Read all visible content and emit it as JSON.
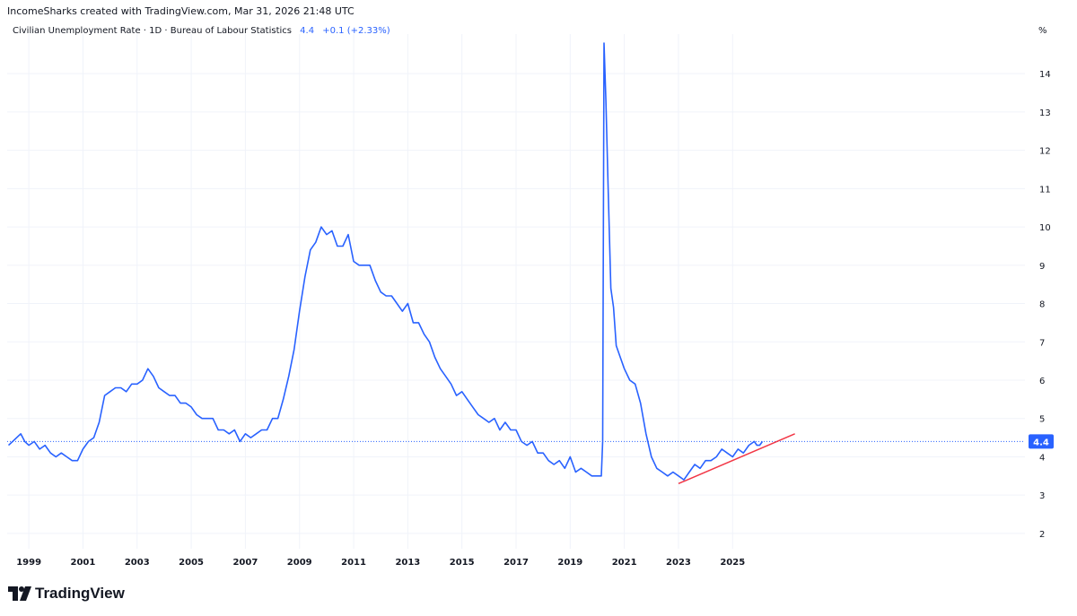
{
  "header": {
    "attribution": "IncomeSharks created with TradingView.com, Mar 31, 2026 21:48 UTC"
  },
  "legend": {
    "symbol": "Civilian Unemployment Rate · 1D · Bureau of Labour Statistics",
    "last_value": "4.4",
    "change": "+0.1 (+2.33%)"
  },
  "axis": {
    "unit": "%",
    "last_price_label": "4.4"
  },
  "brand": {
    "name": "TradingView",
    "logo_icon": "tradingview-logo-icon"
  },
  "colors": {
    "series": "#2962ff",
    "trendline": "#f23645",
    "last_price_bg": "#2962ff",
    "grid": "#f0f3fa"
  },
  "chart_data": {
    "type": "line",
    "title": "Civilian Unemployment Rate",
    "xlabel": "",
    "ylabel": "",
    "xlim": [
      1998.2,
      2035.8
    ],
    "ylim": [
      1.6,
      14.8
    ],
    "x_ticks": [
      1999,
      2001,
      2003,
      2005,
      2007,
      2009,
      2011,
      2013,
      2015,
      2017,
      2019,
      2021,
      2023,
      2025
    ],
    "y_ticks": [
      2,
      3,
      4,
      5,
      6,
      7,
      8,
      9,
      10,
      11,
      12,
      13,
      14
    ],
    "last_value": 4.4,
    "grid": true,
    "series": [
      {
        "name": "",
        "points": [
          [
            1998.25,
            4.3
          ],
          [
            1998.4,
            4.4
          ],
          [
            1998.55,
            4.5
          ],
          [
            1998.7,
            4.6
          ],
          [
            1998.85,
            4.4
          ],
          [
            1999.0,
            4.3
          ],
          [
            1999.2,
            4.4
          ],
          [
            1999.4,
            4.2
          ],
          [
            1999.6,
            4.3
          ],
          [
            1999.8,
            4.1
          ],
          [
            2000.0,
            4.0
          ],
          [
            2000.2,
            4.1
          ],
          [
            2000.4,
            4.0
          ],
          [
            2000.6,
            3.9
          ],
          [
            2000.8,
            3.9
          ],
          [
            2001.0,
            4.2
          ],
          [
            2001.2,
            4.4
          ],
          [
            2001.4,
            4.5
          ],
          [
            2001.6,
            4.9
          ],
          [
            2001.8,
            5.6
          ],
          [
            2002.0,
            5.7
          ],
          [
            2002.2,
            5.8
          ],
          [
            2002.4,
            5.8
          ],
          [
            2002.6,
            5.7
          ],
          [
            2002.8,
            5.9
          ],
          [
            2003.0,
            5.9
          ],
          [
            2003.2,
            6.0
          ],
          [
            2003.4,
            6.3
          ],
          [
            2003.6,
            6.1
          ],
          [
            2003.8,
            5.8
          ],
          [
            2004.0,
            5.7
          ],
          [
            2004.2,
            5.6
          ],
          [
            2004.4,
            5.6
          ],
          [
            2004.6,
            5.4
          ],
          [
            2004.8,
            5.4
          ],
          [
            2005.0,
            5.3
          ],
          [
            2005.2,
            5.1
          ],
          [
            2005.4,
            5.0
          ],
          [
            2005.6,
            5.0
          ],
          [
            2005.8,
            5.0
          ],
          [
            2006.0,
            4.7
          ],
          [
            2006.2,
            4.7
          ],
          [
            2006.4,
            4.6
          ],
          [
            2006.6,
            4.7
          ],
          [
            2006.8,
            4.4
          ],
          [
            2007.0,
            4.6
          ],
          [
            2007.2,
            4.5
          ],
          [
            2007.4,
            4.6
          ],
          [
            2007.6,
            4.7
          ],
          [
            2007.8,
            4.7
          ],
          [
            2008.0,
            5.0
          ],
          [
            2008.2,
            5.0
          ],
          [
            2008.4,
            5.5
          ],
          [
            2008.6,
            6.1
          ],
          [
            2008.8,
            6.8
          ],
          [
            2009.0,
            7.8
          ],
          [
            2009.2,
            8.7
          ],
          [
            2009.4,
            9.4
          ],
          [
            2009.6,
            9.6
          ],
          [
            2009.8,
            10.0
          ],
          [
            2010.0,
            9.8
          ],
          [
            2010.2,
            9.9
          ],
          [
            2010.4,
            9.5
          ],
          [
            2010.6,
            9.5
          ],
          [
            2010.8,
            9.8
          ],
          [
            2011.0,
            9.1
          ],
          [
            2011.2,
            9.0
          ],
          [
            2011.4,
            9.0
          ],
          [
            2011.6,
            9.0
          ],
          [
            2011.8,
            8.6
          ],
          [
            2012.0,
            8.3
          ],
          [
            2012.2,
            8.2
          ],
          [
            2012.4,
            8.2
          ],
          [
            2012.6,
            8.0
          ],
          [
            2012.8,
            7.8
          ],
          [
            2013.0,
            8.0
          ],
          [
            2013.2,
            7.5
          ],
          [
            2013.4,
            7.5
          ],
          [
            2013.6,
            7.2
          ],
          [
            2013.8,
            7.0
          ],
          [
            2014.0,
            6.6
          ],
          [
            2014.2,
            6.3
          ],
          [
            2014.4,
            6.1
          ],
          [
            2014.6,
            5.9
          ],
          [
            2014.8,
            5.6
          ],
          [
            2015.0,
            5.7
          ],
          [
            2015.2,
            5.5
          ],
          [
            2015.4,
            5.3
          ],
          [
            2015.6,
            5.1
          ],
          [
            2015.8,
            5.0
          ],
          [
            2016.0,
            4.9
          ],
          [
            2016.2,
            5.0
          ],
          [
            2016.4,
            4.7
          ],
          [
            2016.6,
            4.9
          ],
          [
            2016.8,
            4.7
          ],
          [
            2017.0,
            4.7
          ],
          [
            2017.2,
            4.4
          ],
          [
            2017.4,
            4.3
          ],
          [
            2017.6,
            4.4
          ],
          [
            2017.8,
            4.1
          ],
          [
            2018.0,
            4.1
          ],
          [
            2018.2,
            3.9
          ],
          [
            2018.4,
            3.8
          ],
          [
            2018.6,
            3.9
          ],
          [
            2018.8,
            3.7
          ],
          [
            2019.0,
            4.0
          ],
          [
            2019.2,
            3.6
          ],
          [
            2019.4,
            3.7
          ],
          [
            2019.6,
            3.6
          ],
          [
            2019.8,
            3.5
          ],
          [
            2020.0,
            3.5
          ],
          [
            2020.15,
            3.5
          ],
          [
            2020.2,
            4.4
          ],
          [
            2020.25,
            14.8
          ],
          [
            2020.32,
            13.3
          ],
          [
            2020.4,
            11.1
          ],
          [
            2020.5,
            8.4
          ],
          [
            2020.6,
            7.9
          ],
          [
            2020.7,
            6.9
          ],
          [
            2020.8,
            6.7
          ],
          [
            2021.0,
            6.3
          ],
          [
            2021.2,
            6.0
          ],
          [
            2021.4,
            5.9
          ],
          [
            2021.6,
            5.4
          ],
          [
            2021.8,
            4.6
          ],
          [
            2022.0,
            4.0
          ],
          [
            2022.2,
            3.7
          ],
          [
            2022.4,
            3.6
          ],
          [
            2022.6,
            3.5
          ],
          [
            2022.8,
            3.6
          ],
          [
            2023.0,
            3.5
          ],
          [
            2023.2,
            3.4
          ],
          [
            2023.4,
            3.6
          ],
          [
            2023.6,
            3.8
          ],
          [
            2023.8,
            3.7
          ],
          [
            2024.0,
            3.9
          ],
          [
            2024.2,
            3.9
          ],
          [
            2024.4,
            4.0
          ],
          [
            2024.6,
            4.2
          ],
          [
            2024.8,
            4.1
          ],
          [
            2025.0,
            4.0
          ],
          [
            2025.2,
            4.2
          ],
          [
            2025.4,
            4.1
          ],
          [
            2025.6,
            4.3
          ],
          [
            2025.8,
            4.4
          ],
          [
            2025.9,
            4.3
          ],
          [
            2026.0,
            4.3
          ],
          [
            2026.1,
            4.4
          ]
        ]
      }
    ],
    "annotations": [
      {
        "type": "trendline",
        "from": [
          2023.0,
          3.3
        ],
        "to": [
          2027.3,
          4.6
        ]
      }
    ]
  }
}
